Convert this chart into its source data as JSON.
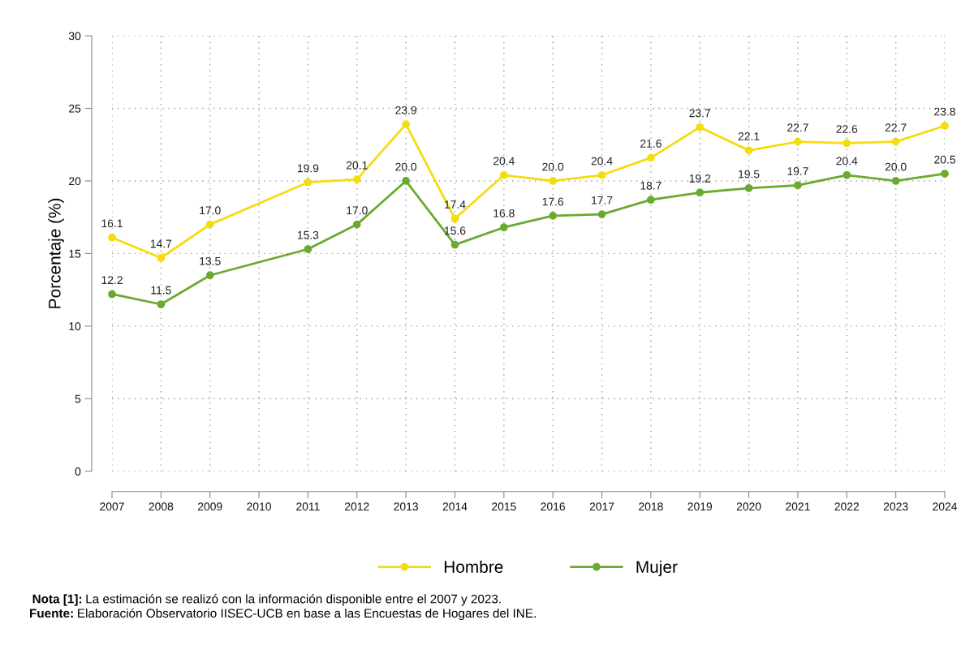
{
  "chart_data": {
    "type": "line",
    "ylabel": "Porcentaje (%)",
    "x": [
      2007,
      2008,
      2009,
      2011,
      2012,
      2013,
      2014,
      2015,
      2016,
      2017,
      2018,
      2019,
      2020,
      2021,
      2022,
      2023,
      2024
    ],
    "series": [
      {
        "name": "Hombre",
        "color": "#f5dc0f",
        "values": [
          16.1,
          14.7,
          17.0,
          19.9,
          20.1,
          23.9,
          17.4,
          20.4,
          20.0,
          20.4,
          21.6,
          23.7,
          22.1,
          22.7,
          22.6,
          22.7,
          23.8
        ],
        "value_labels": [
          "16.1",
          "14.7",
          "17.0",
          "19.9",
          "20.1",
          "23.9",
          "17.4",
          "20.4",
          "20.0",
          "20.4",
          "21.6",
          "23.7",
          "22.1",
          "22.7",
          "22.6",
          "22.7",
          "23.8"
        ]
      },
      {
        "name": "Mujer",
        "color": "#6aaa2e",
        "values": [
          12.2,
          11.5,
          13.5,
          15.3,
          17.0,
          20.0,
          15.6,
          16.8,
          17.6,
          17.7,
          18.7,
          19.2,
          19.5,
          19.7,
          20.4,
          20.0,
          20.5
        ],
        "value_labels": [
          "12.2",
          "11.5",
          "13.5",
          "15.3",
          "17.0",
          "20.0",
          "15.6",
          "16.8",
          "17.6",
          "17.7",
          "18.7",
          "19.2",
          "19.5",
          "19.7",
          "20.4",
          "20.0",
          "20.5"
        ]
      }
    ],
    "xlim": [
      2007,
      2024
    ],
    "xticks": [
      2007,
      2008,
      2009,
      2010,
      2011,
      2012,
      2013,
      2014,
      2015,
      2016,
      2017,
      2018,
      2019,
      2020,
      2021,
      2022,
      2023,
      2024
    ],
    "ylim": [
      0,
      30
    ],
    "yticks": [
      0,
      5,
      10,
      15,
      20,
      25,
      30
    ],
    "grid": true,
    "legend": "bottom",
    "marker": "circle",
    "line_style": "solid",
    "annotations": [
      "Nota [1]: La estimación se realizó con la información disponible entre el 2007 y 2023.",
      "Fuente: Elaboración Observatorio IISEC-UCB en base a las Encuestas de Hogares del INE."
    ]
  }
}
